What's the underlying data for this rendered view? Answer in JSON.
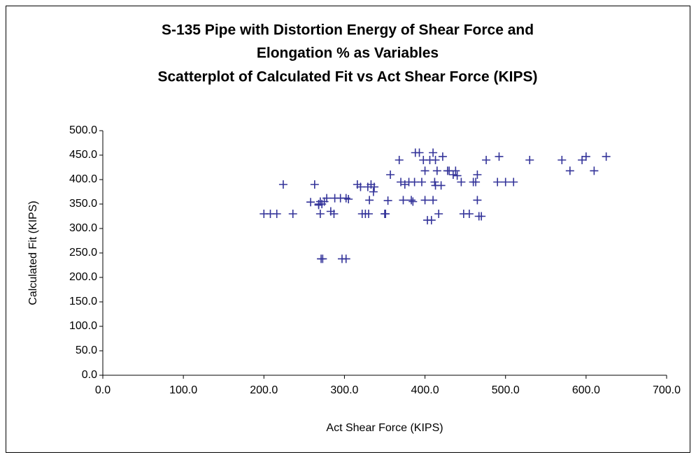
{
  "chart_data": {
    "type": "scatter",
    "title": [
      "S-135 Pipe with Distortion Energy of Shear Force and",
      "Elongation % as Variables"
    ],
    "subtitle": "Scatterplot of Calculated Fit vs Act Shear Force (KIPS)",
    "x_label": "Act Shear Force (KIPS)",
    "y_label": "Calculated Fit (KIPS)",
    "color": "#333399",
    "xlim": [
      0,
      700
    ],
    "ylim": [
      0,
      500
    ],
    "xticks": [
      {
        "value": 0,
        "label": "0.0"
      },
      {
        "value": 100,
        "label": "100.0"
      },
      {
        "value": 200,
        "label": "200.0"
      },
      {
        "value": 300,
        "label": "300.0"
      },
      {
        "value": 400,
        "label": "400.0"
      },
      {
        "value": 500,
        "label": "500.0"
      },
      {
        "value": 600,
        "label": "600.0"
      },
      {
        "value": 700,
        "label": "700.0"
      }
    ],
    "yticks": [
      {
        "value": 0,
        "label": "0.0"
      },
      {
        "value": 50,
        "label": "50.0"
      },
      {
        "value": 100,
        "label": "100.0"
      },
      {
        "value": 150,
        "label": "150.0"
      },
      {
        "value": 200,
        "label": "200.0"
      },
      {
        "value": 250,
        "label": "250.0"
      },
      {
        "value": 300,
        "label": "300.0"
      },
      {
        "value": 350,
        "label": "350.0"
      },
      {
        "value": 400,
        "label": "400.0"
      },
      {
        "value": 450,
        "label": "450.0"
      },
      {
        "value": 500,
        "label": "500.0"
      }
    ],
    "grid": false,
    "x": [
      200,
      208,
      216,
      236,
      224,
      263,
      258,
      268,
      270,
      272,
      268,
      275,
      278,
      270,
      283,
      287,
      288,
      295,
      302,
      305,
      271,
      273,
      297,
      302,
      316,
      320,
      322,
      326,
      330,
      329,
      333,
      337,
      331,
      336,
      350,
      351,
      354,
      357,
      368,
      370,
      375,
      373,
      380,
      383,
      385,
      387,
      388,
      393,
      396,
      398,
      400,
      400,
      403,
      406,
      408,
      410,
      410,
      412,
      413,
      413,
      415,
      417,
      420,
      422,
      428,
      430,
      435,
      438,
      440,
      445,
      448,
      455,
      460,
      463,
      465,
      465,
      467,
      470,
      476,
      490,
      492,
      500,
      510,
      530,
      570,
      580,
      595,
      600,
      610,
      625
    ],
    "values": [
      330,
      330,
      330,
      330,
      390,
      390,
      354,
      350,
      355,
      350,
      348,
      355,
      362,
      330,
      335,
      330,
      362,
      362,
      362,
      360,
      238,
      238,
      238,
      238,
      390,
      385,
      330,
      330,
      330,
      385,
      390,
      385,
      358,
      375,
      330,
      330,
      357,
      410,
      440,
      395,
      390,
      358,
      395,
      358,
      355,
      395,
      455,
      455,
      395,
      440,
      418,
      358,
      317,
      440,
      317,
      455,
      358,
      395,
      440,
      388,
      418,
      330,
      388,
      447,
      418,
      418,
      410,
      418,
      408,
      395,
      330,
      330,
      395,
      395,
      410,
      358,
      325,
      325,
      440,
      395,
      447,
      395,
      395,
      440,
      440,
      418,
      440,
      447,
      418,
      447
    ]
  }
}
